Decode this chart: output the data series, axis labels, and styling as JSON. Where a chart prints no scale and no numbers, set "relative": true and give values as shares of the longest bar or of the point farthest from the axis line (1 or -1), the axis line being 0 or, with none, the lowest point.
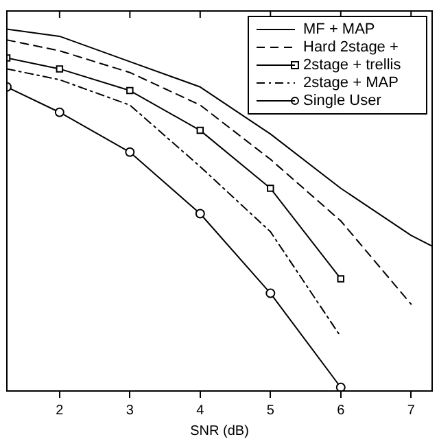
{
  "chart_data": {
    "type": "line",
    "xlabel": "SNR (dB)",
    "relative": true,
    "xlim": [
      1.25,
      7.3
    ],
    "xticks": [
      2,
      3,
      4,
      5,
      6,
      7
    ],
    "tick_labels": "x",
    "grid": false,
    "legend": "top right",
    "series": [
      {
        "name": "MF + MAP",
        "color": "#000000",
        "marker": "none",
        "line_style": "solid",
        "x": [
          1.25,
          2,
          3,
          4,
          5,
          6,
          7,
          7.3
        ],
        "values": [
          1.0,
          0.98,
          0.91,
          0.84,
          0.71,
          0.56,
          0.43,
          0.4
        ]
      },
      {
        "name": "Hard 2stage +",
        "color": "#000000",
        "marker": "none",
        "line_style": "dashed",
        "x": [
          1.25,
          2,
          3,
          4,
          5,
          6,
          7
        ],
        "values": [
          0.97,
          0.94,
          0.88,
          0.79,
          0.64,
          0.47,
          0.24
        ]
      },
      {
        "name": "2stage + trellis",
        "color": "#000000",
        "marker": "square",
        "line_style": "solid",
        "x": [
          1.25,
          2,
          3,
          4,
          5,
          6
        ],
        "values": [
          0.92,
          0.89,
          0.83,
          0.72,
          0.56,
          0.31
        ]
      },
      {
        "name": "2stage + MAP",
        "color": "#000000",
        "marker": "none",
        "line_style": "dashdot",
        "x": [
          1.25,
          2,
          3,
          4,
          5,
          6
        ],
        "values": [
          0.89,
          0.86,
          0.79,
          0.62,
          0.44,
          0.15
        ]
      },
      {
        "name": "Single User",
        "color": "#000000",
        "marker": "circle",
        "line_style": "solid",
        "x": [
          1.25,
          2,
          3,
          4,
          5,
          6
        ],
        "values": [
          0.84,
          0.77,
          0.66,
          0.49,
          0.27,
          0.01
        ]
      }
    ]
  }
}
